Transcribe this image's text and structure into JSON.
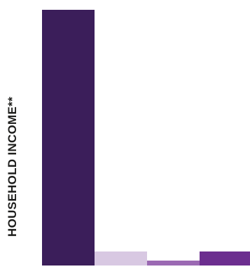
{
  "chart_data": {
    "type": "bar",
    "title": "",
    "xlabel": "",
    "ylabel": "HOUSEHOLD INCOME**",
    "categories": [
      "",
      "",
      "",
      ""
    ],
    "values": [
      365,
      20,
      7,
      20
    ],
    "colors": [
      "#3b1e5a",
      "#d8c8e2",
      "#9b69b3",
      "#6c2e8f"
    ],
    "ylim": [
      0,
      365
    ],
    "grid": false,
    "legend": "none"
  }
}
